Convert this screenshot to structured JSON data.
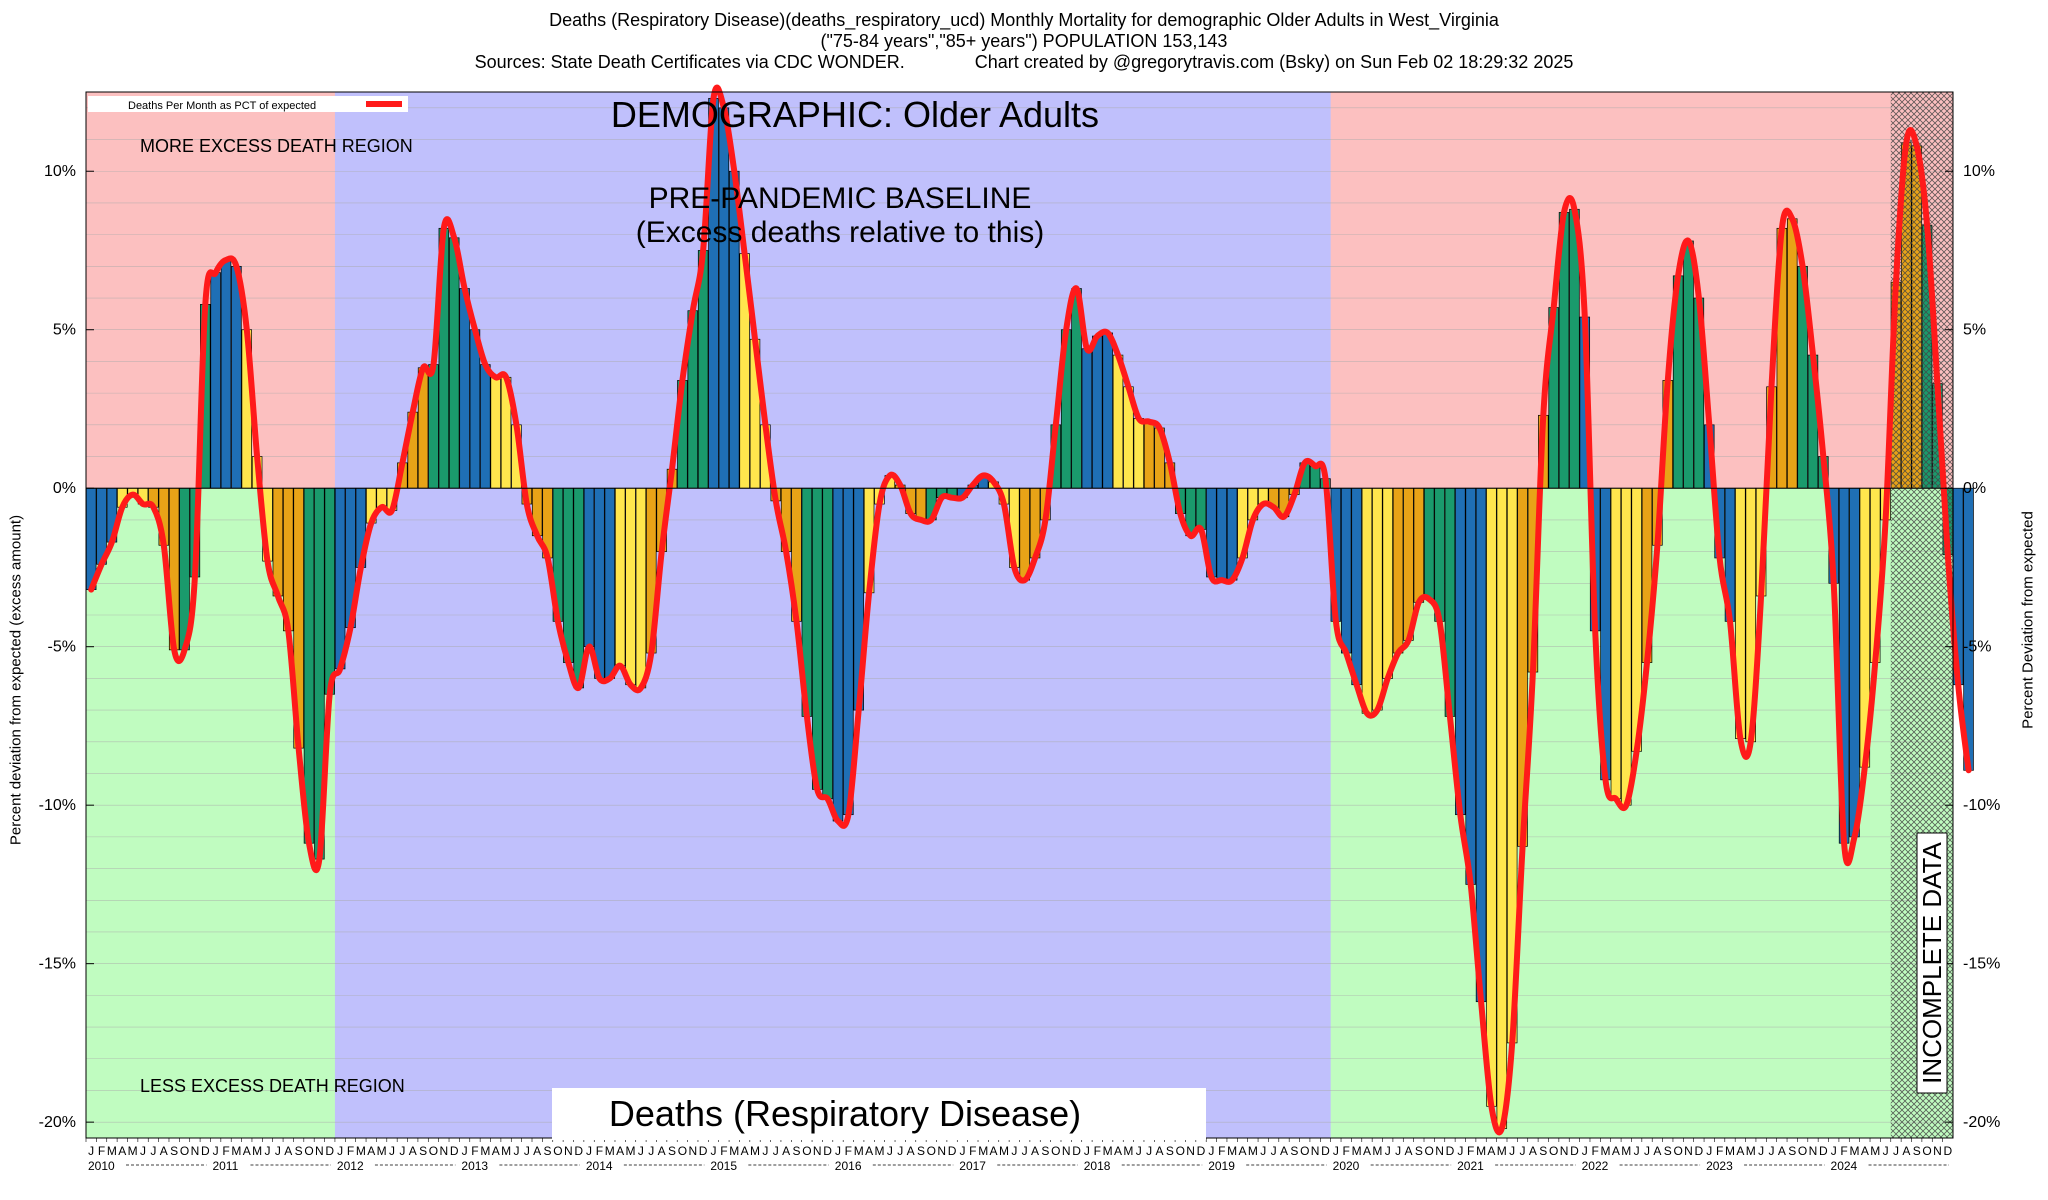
{
  "header": {
    "line1": "Deaths (Respiratory Disease)(deaths_respiratory_ucd) Monthly Mortality for demographic Older Adults in West_Virginia",
    "line2": "(\"75-84 years\",\"85+ years\") POPULATION 153,143",
    "line3a": "Sources: State Death Certificates via CDC WONDER.",
    "line3b": "Chart created by @gregorytravis.com (Bsky) on Sun Feb 02 18:29:32 2025"
  },
  "chart_data": {
    "type": "bar",
    "title": "DEMOGRAPHIC: Older Adults",
    "subtitle": "Deaths (Respiratory Disease)",
    "ylabel_left": "Percent deviation from expected (excess amount)",
    "ylabel_right": "Percent Deviation from expected",
    "ylim": [
      -20.5,
      12.5
    ],
    "yticks": [
      10,
      5,
      0,
      -5,
      -10,
      -15,
      -20
    ],
    "ytick_labels": [
      "10%",
      "5%",
      "0%",
      "-5%",
      "-10%",
      "-15%",
      "-20%"
    ],
    "legend": "Deaths Per Month as PCT of expected",
    "legend_position": "top-left",
    "annotations": {
      "more_excess": "MORE EXCESS DEATH REGION",
      "less_excess": "LESS EXCESS DEATH REGION",
      "baseline_1": "PRE-PANDEMIC BASELINE",
      "baseline_2": "(Excess deaths relative to this)",
      "incomplete": "INCOMPLETE DATA"
    },
    "baseline_years": [
      2012,
      2019
    ],
    "incomplete_from_month_index": 174,
    "month_letters": [
      "J",
      "F",
      "M",
      "A",
      "M",
      "J",
      "J",
      "A",
      "S",
      "O",
      "N",
      "D"
    ],
    "years": [
      2010,
      2011,
      2012,
      2013,
      2014,
      2015,
      2016,
      2017,
      2018,
      2019,
      2020,
      2021,
      2022,
      2023,
      2024
    ],
    "start": "2010-01",
    "values": [
      -3.2,
      -2.4,
      -1.7,
      -0.6,
      -0.2,
      -0.5,
      -0.6,
      -1.8,
      -5.1,
      -5.1,
      -2.8,
      5.8,
      6.8,
      7.2,
      7.0,
      5.0,
      1.0,
      -2.3,
      -3.4,
      -4.5,
      -8.2,
      -11.2,
      -11.7,
      -6.5,
      -5.7,
      -4.4,
      -2.5,
      -1.1,
      -0.6,
      -0.7,
      0.8,
      2.4,
      3.8,
      3.9,
      8.2,
      7.9,
      6.3,
      5.0,
      3.9,
      3.5,
      3.5,
      2.0,
      -0.5,
      -1.5,
      -2.2,
      -4.2,
      -5.5,
      -6.3,
      -5.0,
      -6.0,
      -6.0,
      -5.6,
      -6.2,
      -6.3,
      -5.2,
      -2.0,
      0.6,
      3.4,
      5.6,
      7.5,
      12.3,
      12.0,
      10.0,
      7.4,
      4.7,
      2.0,
      -0.4,
      -2.0,
      -4.2,
      -7.2,
      -9.5,
      -9.8,
      -10.5,
      -10.3,
      -7.0,
      -3.3,
      -0.5,
      0.4,
      0.1,
      -0.8,
      -1.0,
      -1.0,
      -0.3,
      -0.3,
      -0.3,
      0.1,
      0.4,
      0.2,
      -0.5,
      -2.5,
      -2.9,
      -2.2,
      -1.0,
      2.0,
      5.0,
      6.3,
      4.4,
      4.8,
      4.9,
      4.2,
      3.2,
      2.2,
      2.1,
      1.9,
      0.8,
      -0.8,
      -1.5,
      -1.3,
      -2.8,
      -2.9,
      -2.9,
      -2.2,
      -1.0,
      -0.5,
      -0.6,
      -0.9,
      -0.2,
      0.8,
      0.7,
      0.3,
      -4.2,
      -5.2,
      -6.2,
      -7.1,
      -7.0,
      -6.0,
      -5.2,
      -4.8,
      -3.6,
      -3.5,
      -4.2,
      -7.2,
      -10.3,
      -12.5,
      -16.2,
      -19.5,
      -20.2,
      -17.5,
      -11.3,
      -5.8,
      2.3,
      5.7,
      8.7,
      8.8,
      5.4,
      -4.5,
      -9.2,
      -9.8,
      -10.0,
      -8.3,
      -5.5,
      -1.8,
      3.4,
      6.7,
      7.8,
      6.0,
      2.0,
      -2.2,
      -4.2,
      -7.9,
      -8.0,
      -3.4,
      3.2,
      8.2,
      8.5,
      7.0,
      4.2,
      1.0,
      -3.0,
      -11.2,
      -11.0,
      -8.8,
      -5.5,
      -1.0,
      6.5,
      10.9,
      10.8,
      8.3,
      3.3,
      -2.1,
      -6.2,
      -8.9
    ]
  }
}
